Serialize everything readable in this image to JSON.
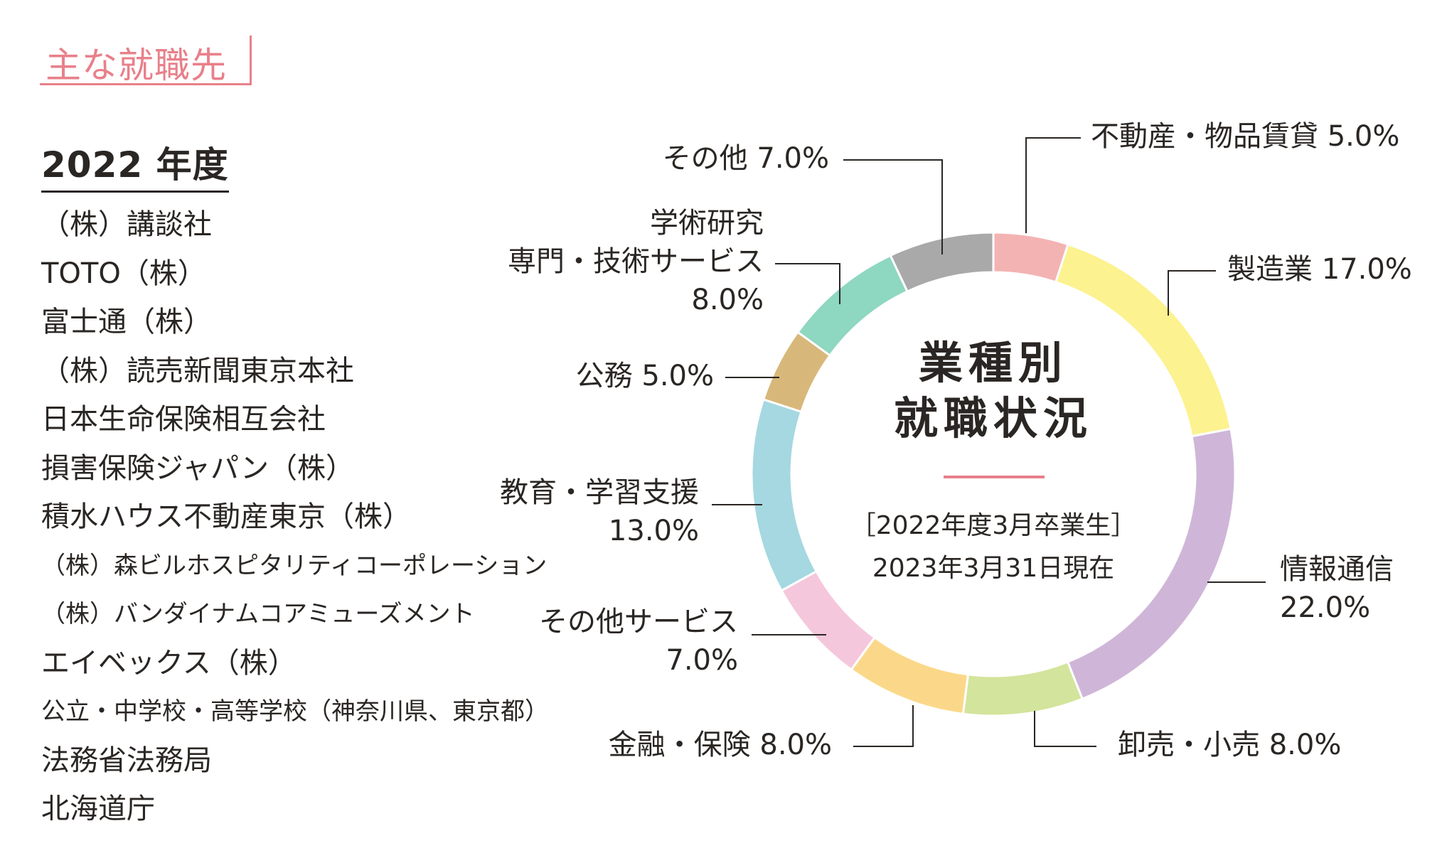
{
  "section_tag": "主な就職先",
  "companies_heading": "2022 年度",
  "companies": [
    {
      "name": "（株）講談社",
      "small": false
    },
    {
      "name": "TOTO（株）",
      "small": false
    },
    {
      "name": "富士通（株）",
      "small": false
    },
    {
      "name": "（株）読売新聞東京本社",
      "small": false
    },
    {
      "name": "日本生命保険相互会社",
      "small": false
    },
    {
      "name": "損害保険ジャパン（株）",
      "small": false
    },
    {
      "name": "積水ハウス不動産東京（株）",
      "small": false
    },
    {
      "name": "（株）森ビルホスピタリティコーポレーション",
      "small": true
    },
    {
      "name": "（株）バンダイナムコアミューズメント",
      "small": true
    },
    {
      "name": "エイベックス（株）",
      "small": false
    },
    {
      "name": "公立・中学校・高等学校（神奈川県、東京都）",
      "small": true
    },
    {
      "name": "法務省法務局",
      "small": false
    },
    {
      "name": "北海道庁",
      "small": false
    }
  ],
  "center": {
    "title_lines": [
      "業種別",
      "就職状況"
    ],
    "subtitle_lines": [
      "［2022年度3月卒業生］",
      "2023年3月31日現在"
    ]
  },
  "chart_data": {
    "type": "pie",
    "donut": true,
    "start": "top",
    "direction": "clockwise",
    "title": "業種別就職状況",
    "slices": [
      {
        "label_lines": [
          "不動産・物品賃貸 5.0%"
        ],
        "value": 5.0,
        "color": "#f4b3b3"
      },
      {
        "label_lines": [
          "製造業 17.0%"
        ],
        "value": 17.0,
        "color": "#fcf28f"
      },
      {
        "label_lines": [
          "情報通信",
          "22.0%"
        ],
        "value": 22.0,
        "color": "#cfb6d8"
      },
      {
        "label_lines": [
          "卸売・小売 8.0%"
        ],
        "value": 8.0,
        "color": "#d3e49c"
      },
      {
        "label_lines": [
          "金融・保険 8.0%"
        ],
        "value": 8.0,
        "color": "#fbd889"
      },
      {
        "label_lines": [
          "その他サービス",
          "7.0%"
        ],
        "value": 7.0,
        "color": "#f5c7dc"
      },
      {
        "label_lines": [
          "教育・学習支援",
          "13.0%"
        ],
        "value": 13.0,
        "color": "#a5d8e1"
      },
      {
        "label_lines": [
          "公務 5.0%"
        ],
        "value": 5.0,
        "color": "#d8b87a"
      },
      {
        "label_lines": [
          "学術研究",
          "専門・技術サービス",
          "8.0%"
        ],
        "value": 8.0,
        "color": "#8ed7c0"
      },
      {
        "label_lines": [
          "その他 7.0%"
        ],
        "value": 7.0,
        "color": "#a9a9a9"
      }
    ]
  }
}
